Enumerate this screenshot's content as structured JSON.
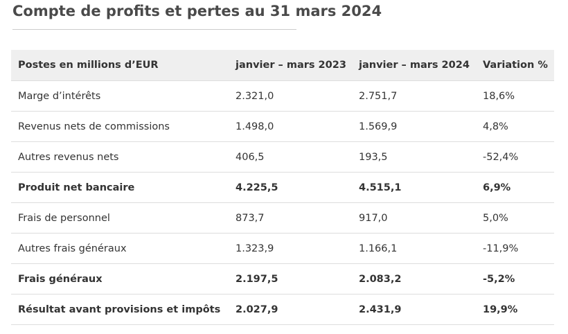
{
  "title": "Compte de profits et pertes au 31 mars 2024",
  "table": {
    "header": [
      "Postes en millions d’EUR",
      "janvier – mars 2023",
      "janvier – mars 2024",
      "Variation %"
    ],
    "rows": [
      {
        "cells": [
          "Marge d’intérêts",
          "2.321,0",
          "2.751,7",
          "18,6%"
        ],
        "bold": false
      },
      {
        "cells": [
          "Revenus nets de commissions",
          "1.498,0",
          "1.569,9",
          "4,8%"
        ],
        "bold": false
      },
      {
        "cells": [
          "Autres revenus nets",
          "406,5",
          "193,5",
          "-52,4%"
        ],
        "bold": false
      },
      {
        "cells": [
          "Produit net bancaire",
          "4.225,5",
          "4.515,1",
          "6,9%"
        ],
        "bold": true
      },
      {
        "cells": [
          "Frais de personnel",
          "873,7",
          "917,0",
          "5,0%"
        ],
        "bold": false
      },
      {
        "cells": [
          "Autres frais généraux",
          "1.323,9",
          "1.166,1",
          "-11,9%"
        ],
        "bold": false
      },
      {
        "cells": [
          "Frais généraux",
          "2.197,5",
          "2.083,2",
          "-5,2%"
        ],
        "bold": true
      },
      {
        "cells": [
          "Résultat avant provisions et impôts",
          "2.027,9",
          "2.431,9",
          "19,9%"
        ],
        "bold": true
      }
    ]
  }
}
